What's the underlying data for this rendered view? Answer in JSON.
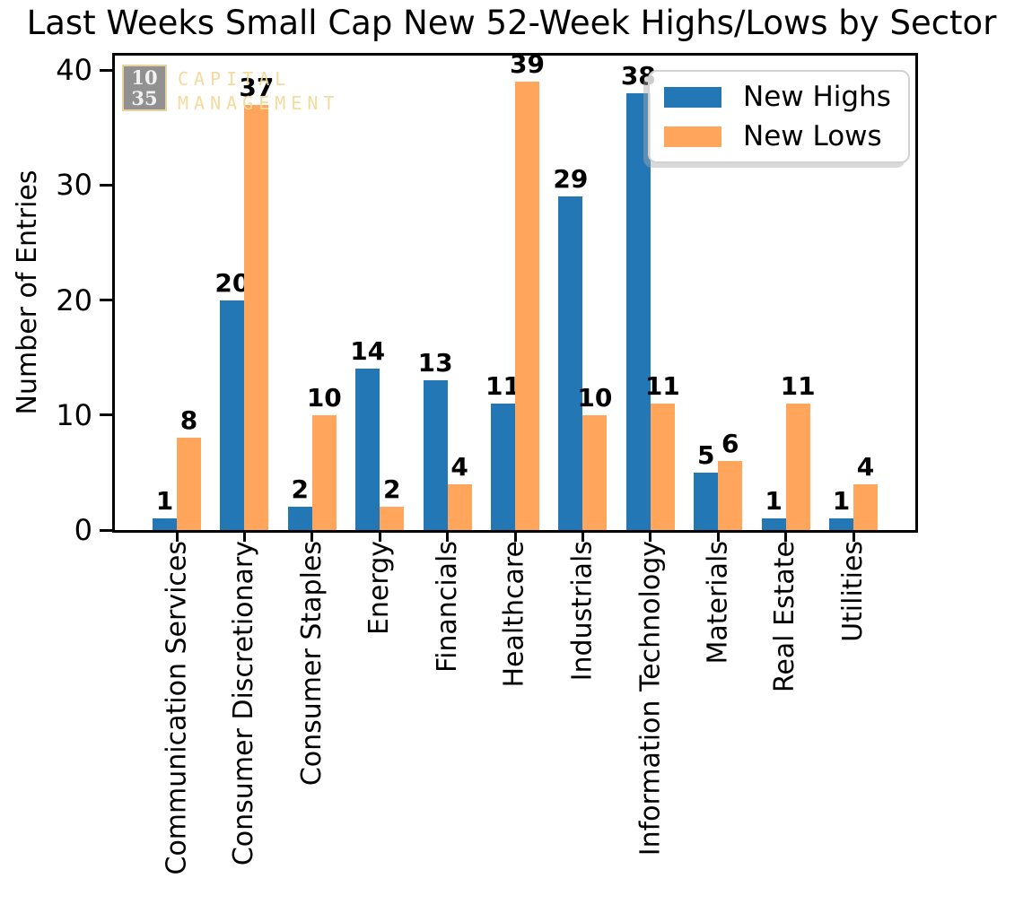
{
  "title": "Last Weeks Small Cap New 52-Week Highs/Lows by Sector",
  "watermark": {
    "box_line1": "10",
    "box_line2": "35",
    "text_line1": "CAPITAL",
    "text_line2": "MANAGEMENT",
    "box_color": "#828282",
    "accent_color": "#f3d898"
  },
  "colors": {
    "new_highs": "#2277b4",
    "new_lows": "#ffa65c",
    "spine": "#000000",
    "legend_border": "#d2d2d2"
  },
  "chart_data": {
    "type": "bar",
    "title": "Last Weeks Small Cap New 52-Week Highs/Lows by Sector",
    "xlabel": "",
    "ylabel": "Number of Entries",
    "categories": [
      "Communication Services",
      "Consumer Discretionary",
      "Consumer Staples",
      "Energy",
      "Financials",
      "Healthcare",
      "Industrials",
      "Information Technology",
      "Materials",
      "Real Estate",
      "Utilities"
    ],
    "series": [
      {
        "name": "New Highs",
        "color": "#2277b4",
        "values": [
          1,
          20,
          2,
          14,
          13,
          11,
          29,
          38,
          5,
          1,
          1
        ]
      },
      {
        "name": "New Lows",
        "color": "#ffa65c",
        "values": [
          8,
          37,
          10,
          2,
          4,
          39,
          10,
          11,
          6,
          11,
          4
        ]
      }
    ],
    "bar_value_labels": true,
    "yticks": [
      0,
      10,
      20,
      30,
      40
    ],
    "ylim": [
      0,
      41.25
    ],
    "grid": false,
    "legend_position": "upper right",
    "x_tick_rotation": 90
  }
}
